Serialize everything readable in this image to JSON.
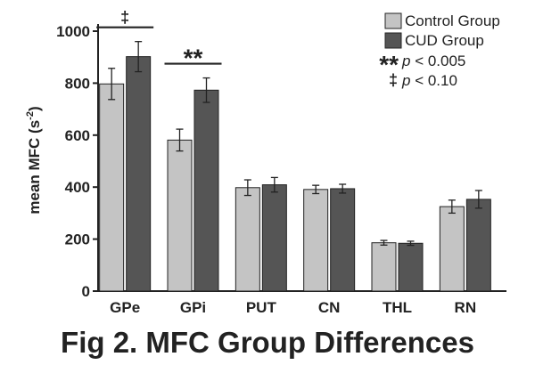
{
  "chart_data": {
    "type": "bar",
    "title": "Fig 2. MFC Group Differences",
    "xlabel": "",
    "ylabel": "mean MFC (s",
    "ylabel_superscript": "-2",
    "ylabel_close": ")",
    "ylim": [
      0,
      1000
    ],
    "yticks": [
      "0",
      "200",
      "400",
      "600",
      "800",
      "1000"
    ],
    "categories": [
      "GPe",
      "GPi",
      "PUT",
      "CN",
      "THL",
      "RN"
    ],
    "series": [
      {
        "name": "Control Group",
        "color": "#c4c4c4",
        "values": [
          797,
          581,
          398,
          391,
          186,
          325
        ],
        "errors": [
          60,
          42,
          30,
          16,
          9,
          25
        ]
      },
      {
        "name": "CUD Group",
        "color": "#555555",
        "values": [
          902,
          773,
          409,
          394,
          184,
          353
        ],
        "errors": [
          58,
          47,
          28,
          17,
          8,
          34
        ]
      }
    ],
    "significance": [
      {
        "category": "GPe",
        "marker": "‡"
      },
      {
        "category": "GPi",
        "marker": "**"
      }
    ],
    "legend_position": "top-right",
    "sig_legend": [
      {
        "marker": "**",
        "p": "p",
        "text": " < 0.005"
      },
      {
        "marker": "‡",
        "p": "p",
        "text": " < 0.10"
      }
    ]
  }
}
